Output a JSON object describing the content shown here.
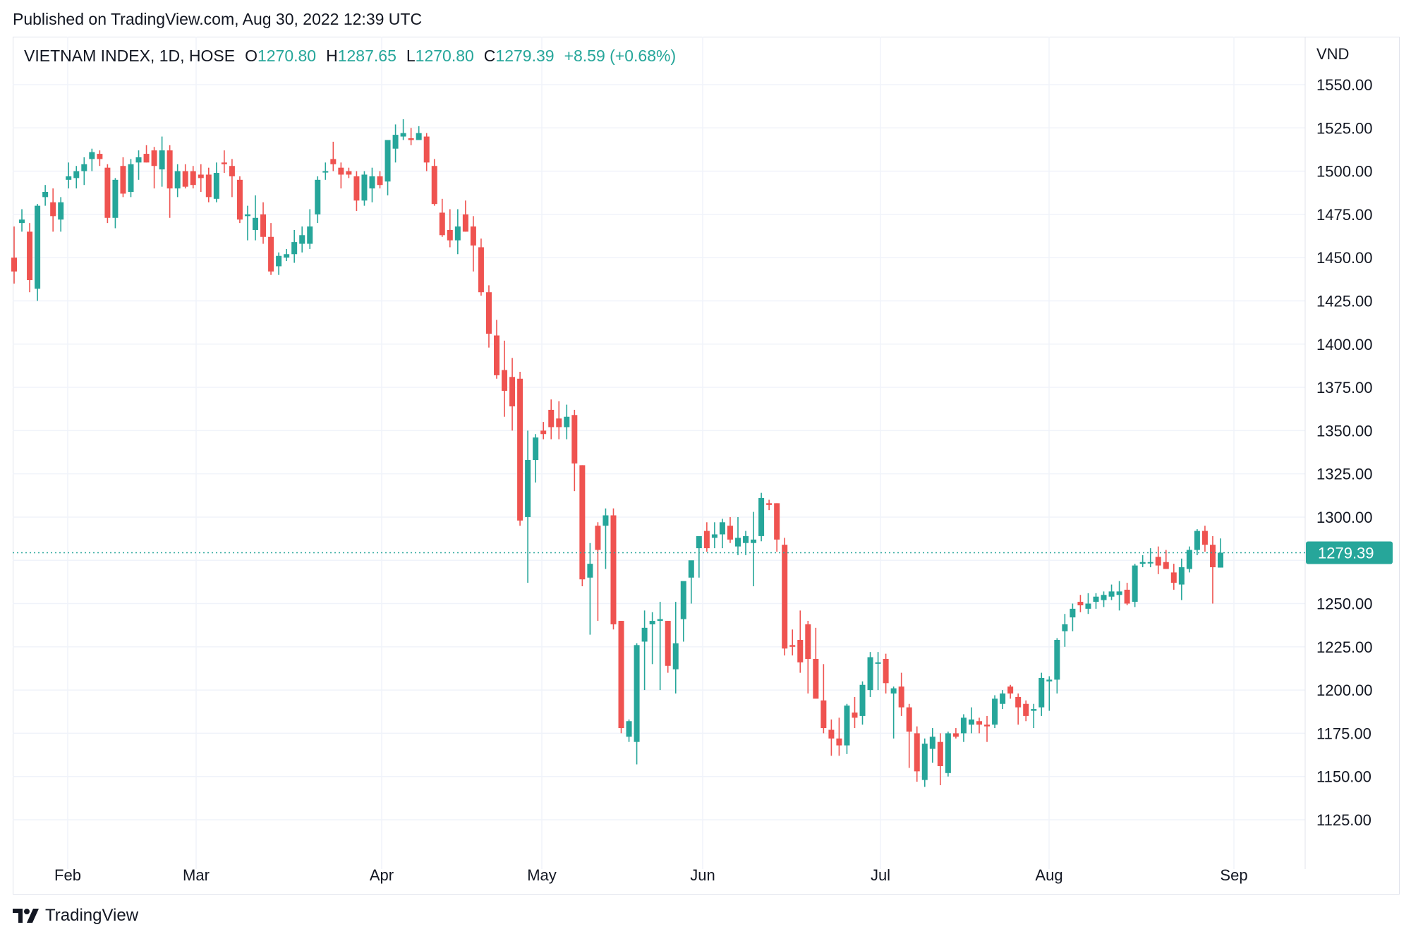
{
  "published": "Published on TradingView.com, Aug 30, 2022 12:39 UTC",
  "legend": {
    "symbol": "VIETNAM INDEX, 1D, HOSE",
    "o_label": "O",
    "o_value": "1270.80",
    "h_label": "H",
    "h_value": "1287.65",
    "l_label": "L",
    "l_value": "1270.80",
    "c_label": "C",
    "c_value": "1279.39",
    "change": "+8.59 (+0.68%)"
  },
  "footer": {
    "brand": "TradingView"
  },
  "colors": {
    "up": "#26a69a",
    "down": "#ef5350",
    "grid": "#f0f3fa",
    "text": "#131722"
  },
  "chart_data": {
    "type": "candlestick",
    "unit": "VND",
    "ylim": [
      1112,
      1566
    ],
    "y_ticks": [
      "1550.00",
      "1525.00",
      "1500.00",
      "1475.00",
      "1450.00",
      "1425.00",
      "1400.00",
      "1375.00",
      "1350.00",
      "1325.00",
      "1300.00",
      "1250.00",
      "1225.00",
      "1200.00",
      "1175.00",
      "1150.00",
      "1125.00"
    ],
    "x_ticks": [
      "Feb",
      "Mar",
      "Apr",
      "May",
      "Jun",
      "Jul",
      "Aug",
      "Sep"
    ],
    "last_price": 1279.39,
    "last_price_label": "1279.39",
    "grid": true,
    "candles": [
      [
        1450,
        1468,
        1435,
        1442
      ],
      [
        1470,
        1478,
        1465,
        1472
      ],
      [
        1465,
        1470,
        1430,
        1437
      ],
      [
        1432,
        1481,
        1425,
        1480
      ],
      [
        1485,
        1492,
        1480,
        1488
      ],
      [
        1482,
        1490,
        1465,
        1474
      ],
      [
        1472,
        1485,
        1465,
        1482
      ],
      [
        1495,
        1505,
        1490,
        1497
      ],
      [
        1496,
        1503,
        1490,
        1500
      ],
      [
        1500,
        1508,
        1492,
        1504
      ],
      [
        1507,
        1513,
        1500,
        1511
      ],
      [
        1510,
        1512,
        1503,
        1507
      ],
      [
        1502,
        1504,
        1470,
        1473
      ],
      [
        1473,
        1496,
        1467,
        1495
      ],
      [
        1503,
        1508,
        1485,
        1487
      ],
      [
        1488,
        1507,
        1485,
        1504
      ],
      [
        1505,
        1512,
        1495,
        1508
      ],
      [
        1510,
        1515,
        1505,
        1505
      ],
      [
        1512,
        1514,
        1490,
        1503
      ],
      [
        1501,
        1520,
        1491,
        1512
      ],
      [
        1512,
        1515,
        1473,
        1490
      ],
      [
        1490,
        1504,
        1485,
        1500
      ],
      [
        1500,
        1504,
        1490,
        1491
      ],
      [
        1500,
        1503,
        1490,
        1492
      ],
      [
        1498,
        1504,
        1488,
        1496
      ],
      [
        1498,
        1502,
        1482,
        1485
      ],
      [
        1484,
        1505,
        1482,
        1499
      ],
      [
        1505,
        1512,
        1499,
        1504
      ],
      [
        1503,
        1507,
        1485,
        1497
      ],
      [
        1495,
        1497,
        1470,
        1472
      ],
      [
        1474,
        1480,
        1460,
        1475
      ],
      [
        1466,
        1486,
        1460,
        1473
      ],
      [
        1475,
        1482,
        1458,
        1462
      ],
      [
        1462,
        1470,
        1440,
        1442
      ],
      [
        1445,
        1453,
        1440,
        1451
      ],
      [
        1450,
        1455,
        1448,
        1452
      ],
      [
        1452,
        1466,
        1447,
        1459
      ],
      [
        1458,
        1468,
        1453,
        1463
      ],
      [
        1458,
        1478,
        1455,
        1468
      ],
      [
        1475,
        1497,
        1470,
        1495
      ],
      [
        1500,
        1505,
        1495,
        1500
      ],
      [
        1507,
        1517,
        1500,
        1504
      ],
      [
        1502,
        1505,
        1490,
        1498
      ],
      [
        1500,
        1502,
        1496,
        1498
      ],
      [
        1497,
        1500,
        1477,
        1483
      ],
      [
        1483,
        1500,
        1480,
        1498
      ],
      [
        1490,
        1502,
        1482,
        1497
      ],
      [
        1497,
        1500,
        1490,
        1492
      ],
      [
        1494,
        1514,
        1486,
        1518
      ],
      [
        1513,
        1527,
        1505,
        1521
      ],
      [
        1520,
        1530,
        1518,
        1522
      ],
      [
        1519,
        1525,
        1515,
        1518
      ],
      [
        1518,
        1526,
        1520,
        1522
      ],
      [
        1520,
        1522,
        1500,
        1505
      ],
      [
        1503,
        1507,
        1480,
        1481
      ],
      [
        1476,
        1484,
        1462,
        1463
      ],
      [
        1466,
        1478,
        1456,
        1460
      ],
      [
        1460,
        1478,
        1452,
        1468
      ],
      [
        1475,
        1483,
        1465,
        1465
      ],
      [
        1468,
        1474,
        1442,
        1457
      ],
      [
        1456,
        1461,
        1428,
        1430
      ],
      [
        1430,
        1434,
        1398,
        1406
      ],
      [
        1405,
        1414,
        1380,
        1382
      ],
      [
        1385,
        1402,
        1358,
        1373
      ],
      [
        1381,
        1392,
        1350,
        1364
      ],
      [
        1380,
        1384,
        1295,
        1298
      ],
      [
        1300,
        1350,
        1262,
        1333
      ],
      [
        1333,
        1348,
        1320,
        1346
      ],
      [
        1350,
        1355,
        1345,
        1348
      ],
      [
        1362,
        1368,
        1345,
        1352
      ],
      [
        1357,
        1367,
        1345,
        1352
      ],
      [
        1352,
        1365,
        1345,
        1358
      ],
      [
        1359,
        1362,
        1315,
        1331
      ],
      [
        1330,
        1330,
        1260,
        1264
      ],
      [
        1265,
        1285,
        1232,
        1273
      ],
      [
        1295,
        1297,
        1240,
        1281
      ],
      [
        1295,
        1305,
        1270,
        1301
      ],
      [
        1301,
        1305,
        1235,
        1238
      ],
      [
        1240,
        1240,
        1175,
        1178
      ],
      [
        1173,
        1183,
        1170,
        1182
      ],
      [
        1170,
        1227,
        1157,
        1226
      ],
      [
        1228,
        1246,
        1200,
        1236
      ],
      [
        1238,
        1245,
        1215,
        1240
      ],
      [
        1240,
        1251,
        1200,
        1241
      ],
      [
        1240,
        1240,
        1210,
        1214
      ],
      [
        1212,
        1251,
        1198,
        1227
      ],
      [
        1241,
        1262,
        1228,
        1263
      ],
      [
        1265,
        1272,
        1250,
        1275
      ],
      [
        1282,
        1285,
        1265,
        1289
      ],
      [
        1292,
        1297,
        1280,
        1282
      ],
      [
        1288,
        1297,
        1282,
        1290
      ],
      [
        1290,
        1299,
        1282,
        1297
      ],
      [
        1295,
        1300,
        1285,
        1287
      ],
      [
        1283,
        1300,
        1278,
        1288
      ],
      [
        1285,
        1292,
        1278,
        1289
      ],
      [
        1285,
        1303,
        1260,
        1287
      ],
      [
        1289,
        1314,
        1286,
        1311
      ],
      [
        1308,
        1310,
        1304,
        1307
      ],
      [
        1308,
        1308,
        1280,
        1287
      ],
      [
        1284,
        1288,
        1220,
        1224
      ],
      [
        1226,
        1235,
        1220,
        1225
      ],
      [
        1229,
        1246,
        1210,
        1216
      ],
      [
        1238,
        1240,
        1198,
        1218
      ],
      [
        1218,
        1236,
        1198,
        1195
      ],
      [
        1194,
        1215,
        1175,
        1178
      ],
      [
        1177,
        1183,
        1162,
        1172
      ],
      [
        1172,
        1184,
        1162,
        1168
      ],
      [
        1168,
        1192,
        1163,
        1191
      ],
      [
        1187,
        1196,
        1178,
        1184
      ],
      [
        1185,
        1205,
        1180,
        1203
      ],
      [
        1200,
        1222,
        1196,
        1219
      ],
      [
        1216,
        1222,
        1200,
        1216
      ],
      [
        1218,
        1221,
        1198,
        1204
      ],
      [
        1198,
        1202,
        1172,
        1201
      ],
      [
        1202,
        1210,
        1185,
        1190
      ],
      [
        1190,
        1192,
        1155,
        1176
      ],
      [
        1175,
        1179,
        1147,
        1153
      ],
      [
        1148,
        1172,
        1144,
        1169
      ],
      [
        1166,
        1178,
        1158,
        1173
      ],
      [
        1170,
        1175,
        1145,
        1156
      ],
      [
        1152,
        1176,
        1150,
        1175
      ],
      [
        1175,
        1178,
        1172,
        1173
      ],
      [
        1175,
        1186,
        1170,
        1184
      ],
      [
        1180,
        1190,
        1175,
        1183
      ],
      [
        1182,
        1184,
        1175,
        1180
      ],
      [
        1180,
        1185,
        1170,
        1179
      ],
      [
        1180,
        1197,
        1178,
        1195
      ],
      [
        1192,
        1200,
        1189,
        1198
      ],
      [
        1202,
        1203,
        1195,
        1198
      ],
      [
        1196,
        1198,
        1180,
        1190
      ],
      [
        1192,
        1194,
        1182,
        1185
      ],
      [
        1188,
        1192,
        1178,
        1189
      ],
      [
        1190,
        1210,
        1185,
        1207
      ],
      [
        1205,
        1208,
        1188,
        1206
      ],
      [
        1206,
        1230,
        1198,
        1229
      ],
      [
        1234,
        1244,
        1225,
        1238
      ],
      [
        1242,
        1250,
        1234,
        1247
      ],
      [
        1251,
        1255,
        1245,
        1249
      ],
      [
        1247,
        1256,
        1244,
        1250
      ],
      [
        1251,
        1256,
        1247,
        1254
      ],
      [
        1252,
        1257,
        1248,
        1255
      ],
      [
        1254,
        1261,
        1252,
        1257
      ],
      [
        1255,
        1263,
        1246,
        1257
      ],
      [
        1258,
        1262,
        1249,
        1250
      ],
      [
        1251,
        1273,
        1248,
        1272
      ],
      [
        1273,
        1278,
        1271,
        1274
      ],
      [
        1274,
        1282,
        1271,
        1274
      ],
      [
        1277,
        1283,
        1267,
        1272
      ],
      [
        1274,
        1281,
        1270,
        1270
      ],
      [
        1268,
        1273,
        1258,
        1262
      ],
      [
        1261,
        1276,
        1252,
        1271
      ],
      [
        1270,
        1283,
        1268,
        1281
      ],
      [
        1281,
        1293,
        1278,
        1292
      ],
      [
        1292,
        1295,
        1280,
        1284
      ],
      [
        1284,
        1289,
        1250,
        1271
      ],
      [
        1270.8,
        1287.65,
        1270.8,
        1279.39
      ]
    ]
  }
}
